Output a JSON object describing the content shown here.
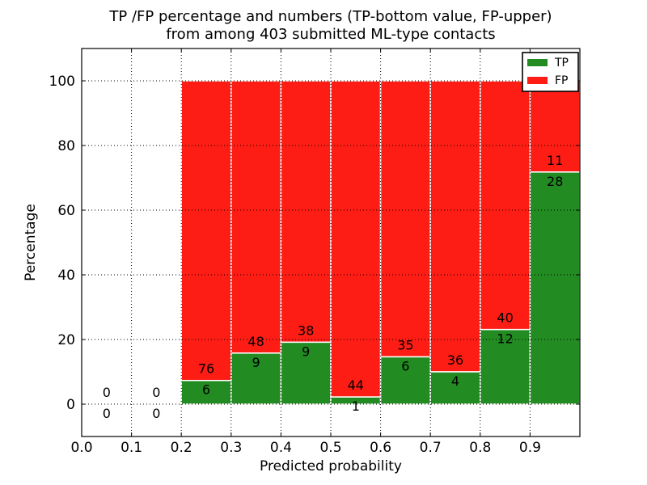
{
  "chart_data": {
    "type": "bar",
    "stacked": true,
    "title_line1": "TP /FP percentage and numbers (TP-bottom value, FP-upper)",
    "title_line2": "from among 403 submitted ML-type contacts",
    "xlabel": "Predicted probability",
    "ylabel": "Percentage",
    "total_contacts": 403,
    "xlim": [
      0.0,
      1.0
    ],
    "ylim": [
      -10,
      110
    ],
    "xticks": [
      "0.0",
      "0.1",
      "0.2",
      "0.3",
      "0.4",
      "0.5",
      "0.6",
      "0.7",
      "0.8",
      "0.9"
    ],
    "yticks": [
      "0",
      "20",
      "40",
      "60",
      "80",
      "100"
    ],
    "grid": "dotted",
    "colors": {
      "tp": "#228b22",
      "fp": "#fd1d15",
      "bar_edge": "#ffffff",
      "frame": "#000000",
      "background": "#ffffff"
    },
    "legend": {
      "position": "upper-right",
      "entries": [
        {
          "label": "TP",
          "color": "#228b22"
        },
        {
          "label": "FP",
          "color": "#fd1d15"
        }
      ]
    },
    "bins": [
      {
        "bin_start": 0.0,
        "bin_end": 0.1,
        "tp_count": 0,
        "fp_count": 0,
        "tp_pct": 0,
        "fp_pct": 0
      },
      {
        "bin_start": 0.1,
        "bin_end": 0.2,
        "tp_count": 0,
        "fp_count": 0,
        "tp_pct": 0,
        "fp_pct": 0
      },
      {
        "bin_start": 0.2,
        "bin_end": 0.3,
        "tp_count": 6,
        "fp_count": 76,
        "tp_pct": 7.32,
        "fp_pct": 92.68
      },
      {
        "bin_start": 0.3,
        "bin_end": 0.4,
        "tp_count": 9,
        "fp_count": 48,
        "tp_pct": 15.79,
        "fp_pct": 84.21
      },
      {
        "bin_start": 0.4,
        "bin_end": 0.5,
        "tp_count": 9,
        "fp_count": 38,
        "tp_pct": 19.15,
        "fp_pct": 80.85
      },
      {
        "bin_start": 0.5,
        "bin_end": 0.6,
        "tp_count": 1,
        "fp_count": 44,
        "tp_pct": 2.22,
        "fp_pct": 97.78
      },
      {
        "bin_start": 0.6,
        "bin_end": 0.7,
        "tp_count": 6,
        "fp_count": 35,
        "tp_pct": 14.63,
        "fp_pct": 85.37
      },
      {
        "bin_start": 0.7,
        "bin_end": 0.8,
        "tp_count": 4,
        "fp_count": 36,
        "tp_pct": 10.0,
        "fp_pct": 90.0
      },
      {
        "bin_start": 0.8,
        "bin_end": 0.9,
        "tp_count": 12,
        "fp_count": 40,
        "tp_pct": 23.08,
        "fp_pct": 76.92
      },
      {
        "bin_start": 0.9,
        "bin_end": 1.0,
        "tp_count": 28,
        "fp_count": 11,
        "tp_pct": 71.79,
        "fp_pct": 28.21
      }
    ]
  }
}
